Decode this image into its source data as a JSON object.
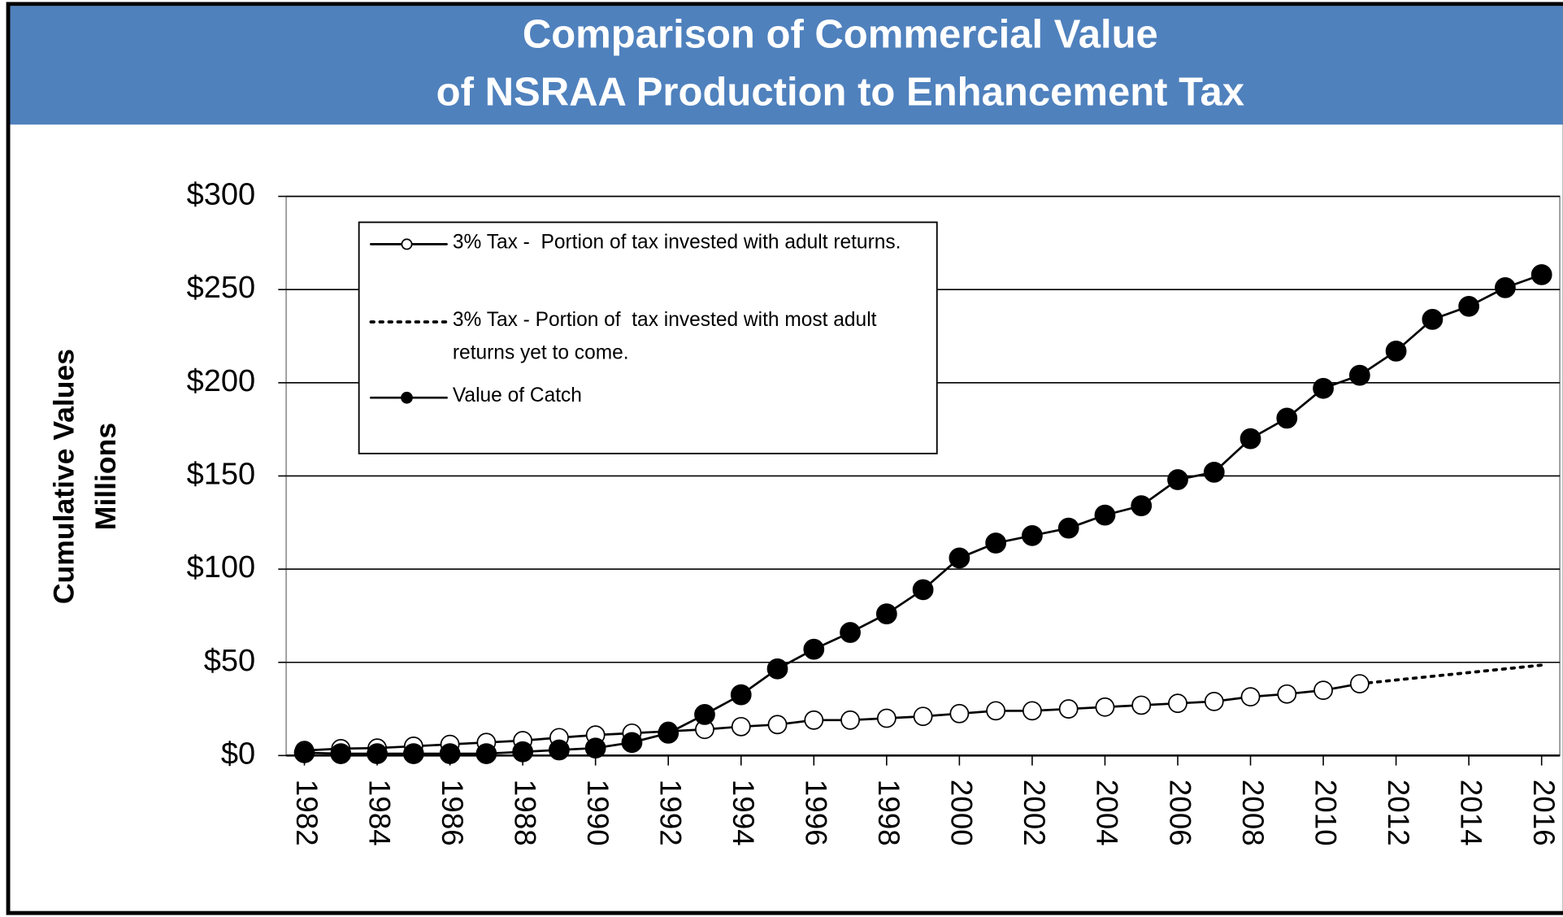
{
  "chart_data": {
    "type": "line",
    "title": [
      "Comparison of Commercial Value",
      "of NSRAA Production to Enhancement Tax"
    ],
    "y_label": [
      "Cumulative Values",
      "Millions"
    ],
    "x": [
      1982,
      1983,
      1984,
      1985,
      1986,
      1987,
      1988,
      1989,
      1990,
      1991,
      1992,
      1993,
      1994,
      1995,
      1996,
      1997,
      1998,
      1999,
      2000,
      2001,
      2002,
      2003,
      2004,
      2005,
      2006,
      2007,
      2008,
      2009,
      2010,
      2011,
      2012,
      2013,
      2014,
      2015,
      2016
    ],
    "series": [
      {
        "name": "3% Tax -  Portion of tax invested with adult returns.",
        "color": "#000000",
        "line_style": "solid",
        "marker": "open",
        "values": [
          2.7,
          3.7,
          4,
          5,
          6,
          7,
          8,
          9.6,
          11,
          12,
          13,
          14,
          15.5,
          16.6,
          19,
          19,
          20,
          21,
          22.5,
          24,
          24,
          25,
          26,
          27,
          28,
          29,
          31.5,
          33,
          35,
          38.5,
          null,
          null,
          null,
          null,
          null
        ]
      },
      {
        "name": "3% Tax - Portion of  tax invested with most adult returns yet to come.",
        "color": "#000000",
        "line_style": "dotted",
        "marker": "none",
        "values": [
          null,
          null,
          null,
          null,
          null,
          null,
          null,
          null,
          null,
          null,
          null,
          null,
          null,
          null,
          null,
          null,
          null,
          null,
          null,
          null,
          null,
          null,
          null,
          null,
          null,
          null,
          null,
          null,
          null,
          38.5,
          40.5,
          42.5,
          44.5,
          46.5,
          48.5
        ]
      },
      {
        "name": "Value of Catch",
        "color": "#000000",
        "line_style": "solid",
        "marker": "filled",
        "values": [
          1.5,
          1,
          1,
          1,
          1,
          1,
          2,
          3,
          4,
          7,
          12,
          22,
          32.6,
          46.5,
          57,
          66,
          76,
          89,
          106,
          114,
          118,
          122,
          129,
          134,
          148,
          152,
          170,
          181,
          197,
          204,
          217,
          234,
          241,
          251,
          258
        ]
      }
    ],
    "xlim": [
      1981.5,
      2016.5
    ],
    "xticks": [
      1982,
      1984,
      1986,
      1988,
      1990,
      1992,
      1994,
      1996,
      1998,
      2000,
      2002,
      2004,
      2006,
      2008,
      2010,
      2012,
      2014,
      2016
    ],
    "ylim": [
      0,
      300
    ],
    "yticks": [
      {
        "value": 0,
        "label": "$0"
      },
      {
        "value": 50,
        "label": "$50"
      },
      {
        "value": 100,
        "label": "$100"
      },
      {
        "value": 150,
        "label": "$150"
      },
      {
        "value": 200,
        "label": "$200"
      },
      {
        "value": 250,
        "label": "$250"
      },
      {
        "value": 300,
        "label": "$300"
      }
    ],
    "grid": true,
    "legend": "upper-left"
  }
}
